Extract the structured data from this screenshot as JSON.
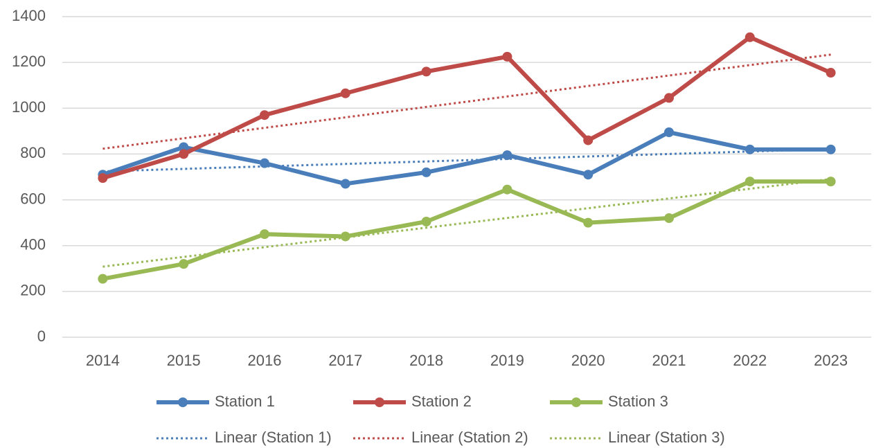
{
  "chart_data": {
    "type": "line",
    "categories": [
      "2014",
      "2015",
      "2016",
      "2017",
      "2018",
      "2019",
      "2020",
      "2021",
      "2022",
      "2023"
    ],
    "series": [
      {
        "name": "Station 1",
        "color": "#4a7ebb",
        "trendline": "Linear (Station 1)",
        "values": [
          710,
          830,
          760,
          670,
          720,
          795,
          710,
          895,
          820,
          820
        ]
      },
      {
        "name": "Station 2",
        "color": "#be4b48",
        "trendline": "Linear (Station 2)",
        "values": [
          695,
          800,
          970,
          1065,
          1160,
          1225,
          860,
          1045,
          1310,
          1155
        ]
      },
      {
        "name": "Station 3",
        "color": "#98b954",
        "trendline": "Linear (Station 3)",
        "values": [
          255,
          320,
          450,
          440,
          505,
          645,
          500,
          520,
          680,
          680
        ]
      }
    ],
    "ylim": [
      0,
      1400
    ],
    "yticks": [
      0,
      200,
      400,
      600,
      800,
      1000,
      1200,
      1400
    ],
    "grid": true,
    "legend": "bottom"
  }
}
